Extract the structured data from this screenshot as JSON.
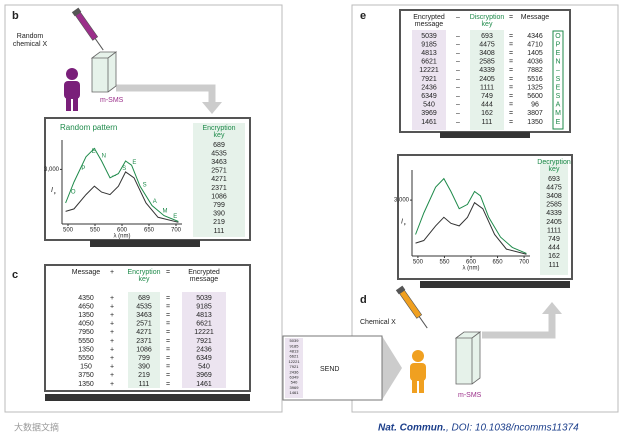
{
  "panel_b": {
    "label": "b",
    "chemical": [
      "Random",
      "chemical X"
    ],
    "cuvette": "m-SMS",
    "screen": {
      "title": "Random pattern",
      "key_header": [
        "Encryption",
        "key"
      ],
      "key": [
        "689",
        "4535",
        "3463",
        "2571",
        "4271",
        "2371",
        "1086",
        "799",
        "390",
        "219",
        "111"
      ],
      "y_label": "I",
      "y_label_sub": "F",
      "y_tick": "3,000",
      "x_ticks": [
        "500",
        "550",
        "600",
        "650",
        "700"
      ],
      "x_label": "λ (nm)",
      "peak_letters": [
        "O",
        "P",
        "E",
        "N",
        "–",
        "S",
        "E",
        "S",
        "A",
        "M",
        "E"
      ]
    }
  },
  "panel_c": {
    "label": "c",
    "headers": {
      "message": "Message",
      "plus": "+",
      "key": [
        "Encryption",
        "key"
      ],
      "equals": "=",
      "encrypted": [
        "Encrypted",
        "message"
      ]
    },
    "rows": [
      [
        "4350",
        "689",
        "5039"
      ],
      [
        "4650",
        "4535",
        "9185"
      ],
      [
        "1350",
        "3463",
        "4813"
      ],
      [
        "4050",
        "2571",
        "6621"
      ],
      [
        "7950",
        "4271",
        "12221"
      ],
      [
        "5550",
        "2371",
        "7921"
      ],
      [
        "1350",
        "1086",
        "2436"
      ],
      [
        "5550",
        "799",
        "6349"
      ],
      [
        "150",
        "390",
        "540"
      ],
      [
        "3750",
        "219",
        "3969"
      ],
      [
        "1350",
        "111",
        "1461"
      ]
    ]
  },
  "panel_d": {
    "label": "d",
    "chemical": "Chemical X",
    "cuvette": "m-SMS",
    "envelope": {
      "label": "SEND",
      "values": [
        "5039",
        "9185",
        "4813",
        "6621",
        "12221",
        "7921",
        "2436",
        "6349",
        "540",
        "3969",
        "1461"
      ]
    }
  },
  "panel_e": {
    "label": "e",
    "table": {
      "headers": {
        "encrypted": [
          "Encrypted",
          "message"
        ],
        "minus": "–",
        "key": [
          "Discryption",
          "key"
        ],
        "equals": "=",
        "message": "Message"
      },
      "rows": [
        [
          "5039",
          "693",
          "4346",
          "O"
        ],
        [
          "9185",
          "4475",
          "4710",
          "P"
        ],
        [
          "4813",
          "3408",
          "1405",
          "E"
        ],
        [
          "6621",
          "2585",
          "4036",
          "N"
        ],
        [
          "12221",
          "4339",
          "7882",
          "–"
        ],
        [
          "7921",
          "2405",
          "5516",
          "S"
        ],
        [
          "2436",
          "1111",
          "1325",
          "E"
        ],
        [
          "6349",
          "749",
          "5600",
          "S"
        ],
        [
          "540",
          "444",
          "96",
          "A"
        ],
        [
          "3969",
          "162",
          "3807",
          "M"
        ],
        [
          "1461",
          "111",
          "1350",
          "E"
        ]
      ]
    },
    "screen": {
      "key_header": [
        "Decryption",
        "key"
      ],
      "key": [
        "693",
        "4475",
        "3408",
        "2585",
        "4339",
        "2405",
        "1111",
        "749",
        "444",
        "162",
        "111"
      ],
      "y_label": "I",
      "y_label_sub": "F",
      "y_tick": "3,000",
      "x_ticks": [
        "500",
        "550",
        "600",
        "650",
        "700"
      ],
      "x_label": "λ (nm)"
    }
  },
  "footer": {
    "journal": "Nat. Commun.",
    "doi": ", DOI: 10.1038/ncomms11374"
  },
  "watermark": "大数据文摘"
}
